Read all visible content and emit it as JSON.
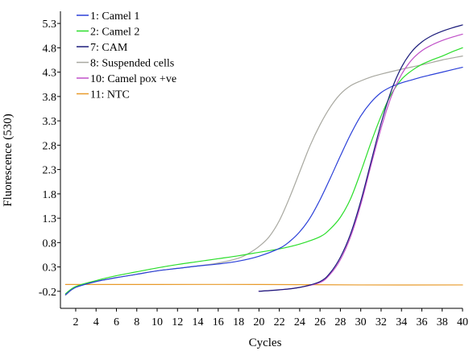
{
  "chart_data": {
    "type": "line",
    "title": "",
    "xlabel": "Cycles",
    "ylabel": "Fluorescence (530)",
    "xlim": [
      0.5,
      40
    ],
    "ylim": [
      -0.55,
      5.55
    ],
    "xticks": [
      2,
      4,
      6,
      8,
      10,
      12,
      14,
      16,
      18,
      20,
      22,
      24,
      26,
      28,
      30,
      32,
      34,
      36,
      38,
      40
    ],
    "yticks": [
      -0.2,
      0.3,
      0.8,
      1.3,
      1.8,
      2.3,
      2.8,
      3.3,
      3.8,
      4.3,
      4.8,
      5.3
    ],
    "grid": false,
    "legend": "top-left",
    "series": [
      {
        "name": "1: Camel 1",
        "color": "#2a3fd8",
        "x": [
          1,
          2,
          4,
          6,
          8,
          10,
          12,
          14,
          16,
          18,
          20,
          22,
          23,
          24,
          25,
          26,
          27,
          28,
          29,
          30,
          31,
          32,
          33,
          34,
          35,
          36,
          37,
          38,
          39,
          40
        ],
        "y": [
          -0.27,
          -0.12,
          0.0,
          0.08,
          0.15,
          0.22,
          0.27,
          0.32,
          0.36,
          0.42,
          0.52,
          0.68,
          0.82,
          1.02,
          1.3,
          1.68,
          2.12,
          2.58,
          3.02,
          3.4,
          3.68,
          3.88,
          4.0,
          4.08,
          4.14,
          4.2,
          4.25,
          4.3,
          4.35,
          4.4
        ]
      },
      {
        "name": "2: Camel 2",
        "color": "#2bde2b",
        "x": [
          1,
          2,
          4,
          6,
          8,
          10,
          12,
          14,
          16,
          18,
          20,
          22,
          24,
          26,
          27,
          28,
          29,
          30,
          31,
          32,
          33,
          34,
          35,
          36,
          37,
          38,
          39,
          40
        ],
        "y": [
          -0.25,
          -0.1,
          0.02,
          0.12,
          0.2,
          0.28,
          0.35,
          0.41,
          0.47,
          0.53,
          0.6,
          0.67,
          0.77,
          0.92,
          1.08,
          1.32,
          1.7,
          2.25,
          2.85,
          3.4,
          3.85,
          4.15,
          4.33,
          4.46,
          4.55,
          4.63,
          4.72,
          4.8
        ]
      },
      {
        "name": "7: CAM",
        "color": "#1a1a7a",
        "x": [
          20,
          22,
          24,
          26,
          27,
          28,
          29,
          30,
          31,
          32,
          33,
          34,
          35,
          36,
          37,
          38,
          39,
          40
        ],
        "y": [
          -0.2,
          -0.17,
          -0.12,
          0.0,
          0.18,
          0.5,
          0.98,
          1.65,
          2.45,
          3.25,
          3.92,
          4.4,
          4.72,
          4.92,
          5.05,
          5.14,
          5.21,
          5.27
        ]
      },
      {
        "name": "8: Suspended cells",
        "color": "#a8a8a0",
        "x": [
          1,
          2,
          4,
          6,
          8,
          10,
          12,
          14,
          16,
          18,
          19,
          20,
          21,
          22,
          23,
          24,
          25,
          26,
          27,
          28,
          29,
          30,
          31,
          32,
          34,
          36,
          38,
          40
        ],
        "y": [
          -0.28,
          -0.12,
          0.0,
          0.08,
          0.15,
          0.22,
          0.27,
          0.32,
          0.38,
          0.48,
          0.58,
          0.72,
          0.92,
          1.25,
          1.72,
          2.25,
          2.78,
          3.22,
          3.58,
          3.85,
          4.02,
          4.12,
          4.2,
          4.26,
          4.36,
          4.45,
          4.55,
          4.63
        ]
      },
      {
        "name": "10: Camel pox +ve",
        "color": "#c050c8",
        "x": [
          20,
          22,
          24,
          26,
          27,
          28,
          29,
          30,
          31,
          32,
          33,
          34,
          35,
          36,
          37,
          38,
          39,
          40
        ],
        "y": [
          -0.2,
          -0.17,
          -0.12,
          -0.02,
          0.15,
          0.45,
          0.92,
          1.58,
          2.38,
          3.15,
          3.8,
          4.25,
          4.55,
          4.74,
          4.86,
          4.95,
          5.02,
          5.08
        ]
      },
      {
        "name": "11: NTC",
        "color": "#e89a2a",
        "x": [
          1,
          4,
          10,
          20,
          30,
          40
        ],
        "y": [
          -0.06,
          -0.06,
          -0.06,
          -0.06,
          -0.07,
          -0.07
        ]
      }
    ]
  }
}
